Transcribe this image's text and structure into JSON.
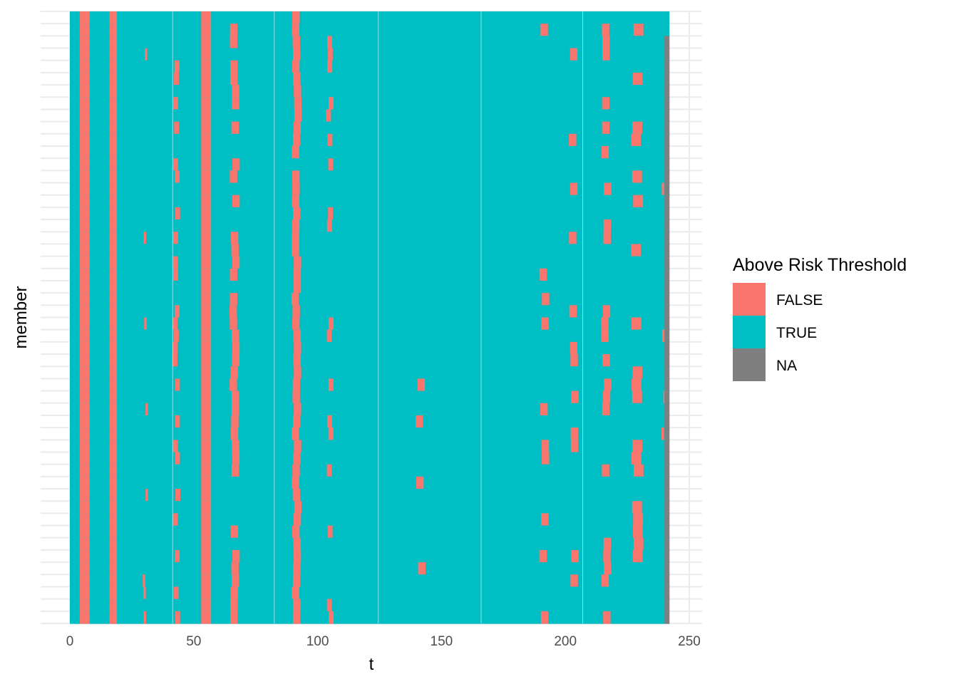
{
  "chart_data": {
    "type": "heatmap",
    "title": "",
    "xlabel": "t",
    "ylabel": "member",
    "xlim": [
      0,
      250
    ],
    "x_ticks": [
      0,
      50,
      100,
      150,
      200,
      250
    ],
    "x_tick_labels": [
      "0",
      "50",
      "100",
      "150",
      "200",
      "250"
    ],
    "t_max": 242,
    "member_count": 50,
    "y_tick_labels_shown": false,
    "grid": true,
    "legend": {
      "title": "Above Risk Threshold",
      "position": "right",
      "entries": [
        {
          "label": "FALSE",
          "color": "#F8766D"
        },
        {
          "label": "TRUE",
          "color": "#00BFC4"
        },
        {
          "label": "NA",
          "color": "#7F7F7F"
        }
      ]
    },
    "default_value": "TRUE",
    "na_from_t": 240,
    "na_from_member": 2,
    "false_columns": [
      {
        "t_start": 4,
        "t_end": 8,
        "coverage": 1.0
      },
      {
        "t_start": 16,
        "t_end": 19,
        "coverage": 1.0
      },
      {
        "t_start": 53,
        "t_end": 57,
        "coverage": 1.0
      },
      {
        "t_start": 90,
        "t_end": 93,
        "coverage": 0.95
      },
      {
        "t_start": 42,
        "t_end": 44,
        "coverage": 0.55
      },
      {
        "t_start": 65,
        "t_end": 68,
        "coverage": 0.7
      },
      {
        "t_start": 104,
        "t_end": 106,
        "coverage": 0.35
      },
      {
        "t_start": 30,
        "t_end": 31,
        "coverage": 0.15
      },
      {
        "t_start": 140,
        "t_end": 143,
        "coverage": 0.1
      },
      {
        "t_start": 190,
        "t_end": 193,
        "coverage": 0.15
      },
      {
        "t_start": 202,
        "t_end": 205,
        "coverage": 0.35
      },
      {
        "t_start": 215,
        "t_end": 218,
        "coverage": 0.45
      },
      {
        "t_start": 227,
        "t_end": 231,
        "coverage": 0.45
      },
      {
        "t_start": 239,
        "t_end": 240,
        "coverage": 0.1
      }
    ]
  }
}
